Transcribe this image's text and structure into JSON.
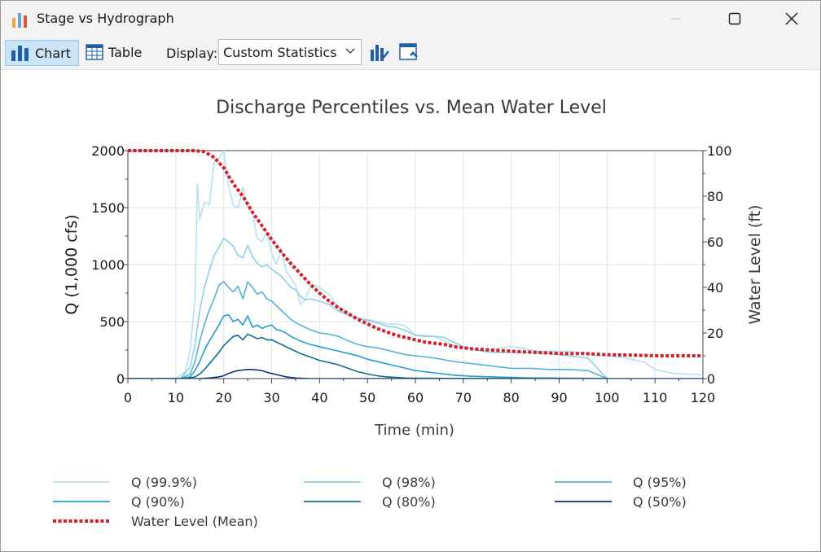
{
  "window": {
    "title": "Stage vs Hydrograph",
    "icon": "bar-chart-icon"
  },
  "toolbar": {
    "chart_label": "Chart",
    "table_label": "Table",
    "display_label": "Display:",
    "display_value": "Custom Statistics"
  },
  "chart_data": {
    "type": "line",
    "title": "Discharge Percentiles vs. Mean Water Level",
    "xlabel": "Time (min)",
    "ylabel": "Q (1,000 cfs)",
    "y2label": "Water Level (ft)",
    "xlim": [
      0,
      120
    ],
    "ylim": [
      0,
      2000
    ],
    "y2lim": [
      0,
      100
    ],
    "xticks": [
      "0",
      "10",
      "20",
      "30",
      "40",
      "50",
      "60",
      "70",
      "80",
      "90",
      "100",
      "110",
      "120"
    ],
    "yticks": [
      "0",
      "500",
      "1000",
      "1500",
      "2000"
    ],
    "y2ticks": [
      "0",
      "20",
      "40",
      "60",
      "80",
      "100"
    ],
    "grid": true,
    "legend_position": "bottom",
    "series": [
      {
        "name": "Q (99.9%)",
        "axis": "left",
        "color": "#b8e0ee",
        "style": "solid",
        "x": [
          0,
          10,
          12,
          13,
          14,
          14.5,
          15,
          16,
          17,
          18,
          19,
          20,
          21,
          22,
          23,
          24,
          25,
          26,
          27,
          28,
          29,
          30,
          31,
          32,
          33,
          34,
          35,
          36,
          37,
          38,
          39,
          40,
          42,
          44,
          46,
          48,
          50,
          52,
          54,
          56,
          58,
          60,
          62,
          64,
          66,
          68,
          70,
          72,
          74,
          76,
          78,
          80,
          82,
          84,
          86,
          88,
          90,
          92,
          94,
          96,
          98,
          100,
          102,
          104,
          106,
          108,
          110,
          112,
          114,
          116,
          118,
          120
        ],
        "y": [
          0,
          0,
          60,
          250,
          700,
          1710,
          1400,
          1550,
          1520,
          1900,
          1930,
          2000,
          1700,
          1520,
          1500,
          1680,
          1510,
          1450,
          1230,
          1200,
          1280,
          1100,
          1000,
          1140,
          950,
          880,
          820,
          650,
          690,
          800,
          820,
          800,
          740,
          620,
          560,
          520,
          520,
          500,
          480,
          480,
          460,
          380,
          380,
          370,
          330,
          290,
          270,
          260,
          250,
          250,
          270,
          280,
          270,
          250,
          240,
          240,
          240,
          240,
          230,
          220,
          200,
          200,
          190,
          180,
          160,
          140,
          80,
          60,
          45,
          40,
          38,
          30
        ]
      },
      {
        "name": "Q (98%)",
        "axis": "left",
        "color": "#8ecfe3",
        "style": "solid",
        "x": [
          0,
          11,
          13,
          14,
          15,
          16,
          17,
          18,
          19,
          20,
          21,
          22,
          23,
          24,
          25,
          26,
          27,
          28,
          29,
          30,
          31,
          32,
          33,
          34,
          35,
          36,
          37,
          38,
          39,
          40,
          42,
          44,
          46,
          48,
          50,
          52,
          54,
          56,
          58,
          60,
          62,
          64,
          66,
          68,
          70,
          72,
          74,
          76,
          78,
          80,
          84,
          88,
          92,
          96,
          100
        ],
        "y": [
          0,
          0,
          100,
          300,
          600,
          800,
          950,
          1080,
          1150,
          1230,
          1200,
          1160,
          1080,
          1060,
          1170,
          1070,
          1010,
          980,
          1000,
          960,
          930,
          900,
          850,
          800,
          780,
          720,
          690,
          700,
          690,
          680,
          650,
          590,
          560,
          530,
          510,
          490,
          460,
          450,
          420,
          380,
          370,
          370,
          360,
          320,
          280,
          260,
          240,
          230,
          230,
          230,
          230,
          220,
          200,
          180,
          0
        ]
      },
      {
        "name": "Q (95%)",
        "axis": "left",
        "color": "#52b3d4",
        "style": "solid",
        "x": [
          0,
          11,
          13,
          14,
          15,
          16,
          17,
          18,
          19,
          20,
          21,
          22,
          23,
          24,
          25,
          26,
          27,
          28,
          29,
          30,
          31,
          32,
          33,
          34,
          35,
          36,
          38,
          40,
          42,
          44,
          46,
          48,
          50,
          52,
          54,
          56,
          58,
          60,
          64,
          68,
          72,
          76,
          80,
          84,
          88,
          92,
          96,
          100
        ],
        "y": [
          0,
          0,
          40,
          150,
          330,
          480,
          600,
          700,
          820,
          850,
          800,
          760,
          810,
          700,
          850,
          800,
          740,
          760,
          700,
          680,
          640,
          600,
          560,
          520,
          490,
          470,
          430,
          400,
          390,
          370,
          330,
          300,
          280,
          270,
          250,
          230,
          210,
          200,
          180,
          150,
          130,
          110,
          90,
          90,
          80,
          80,
          70,
          0
        ]
      },
      {
        "name": "Q (90%)",
        "axis": "left",
        "color": "#1f9fc9",
        "style": "solid",
        "x": [
          0,
          11,
          13,
          14,
          15,
          16,
          17,
          18,
          19,
          20,
          21,
          22,
          23,
          24,
          25,
          26,
          27,
          28,
          29,
          30,
          31,
          32,
          33,
          34,
          35,
          36,
          38,
          40,
          42,
          44,
          46,
          48,
          50,
          52,
          54,
          56,
          58,
          60,
          64,
          68,
          72,
          76,
          80,
          84,
          88,
          92,
          96,
          100
        ],
        "y": [
          0,
          0,
          15,
          70,
          150,
          250,
          330,
          400,
          470,
          550,
          560,
          500,
          520,
          470,
          550,
          450,
          470,
          440,
          460,
          470,
          430,
          420,
          400,
          370,
          350,
          330,
          300,
          280,
          260,
          240,
          220,
          200,
          170,
          150,
          130,
          110,
          90,
          70,
          50,
          30,
          20,
          15,
          10,
          5,
          5,
          3,
          2,
          0
        ]
      },
      {
        "name": "Q (80%)",
        "axis": "left",
        "color": "#0f6d8e",
        "style": "solid",
        "x": [
          0,
          12,
          14,
          15,
          16,
          17,
          18,
          19,
          20,
          21,
          22,
          23,
          24,
          25,
          26,
          27,
          28,
          29,
          30,
          31,
          32,
          33,
          34,
          35,
          36,
          38,
          40,
          42,
          44,
          46,
          48,
          50,
          52,
          54,
          56,
          58,
          60,
          64,
          68,
          72,
          76,
          80
        ],
        "y": [
          0,
          0,
          15,
          40,
          80,
          130,
          180,
          230,
          290,
          330,
          370,
          380,
          340,
          390,
          370,
          350,
          360,
          340,
          340,
          320,
          300,
          280,
          260,
          240,
          220,
          190,
          160,
          140,
          120,
          90,
          60,
          40,
          25,
          15,
          10,
          5,
          3,
          2,
          1,
          0,
          0,
          0
        ]
      },
      {
        "name": "Q (80%)",
        "axis": "left",
        "color": "#0f6d8e",
        "style": "hidden",
        "x": [],
        "y": []
      },
      {
        "name": "Q (50%)",
        "axis": "left",
        "color": "#10327a",
        "style": "solid",
        "x": [
          0,
          15,
          17,
          19,
          20,
          21,
          22,
          23,
          24,
          25,
          26,
          27,
          28,
          29,
          30,
          31,
          32,
          33,
          34,
          35,
          36,
          38,
          120
        ],
        "y": [
          0,
          0,
          5,
          15,
          25,
          45,
          60,
          70,
          75,
          80,
          80,
          75,
          70,
          55,
          45,
          35,
          25,
          15,
          10,
          5,
          3,
          0,
          0
        ]
      },
      {
        "name": "Water Level (Mean)",
        "axis": "right",
        "color": "#d0222a",
        "style": "dotted",
        "x": [
          0,
          14,
          16,
          18,
          20,
          22,
          24,
          26,
          28,
          30,
          32,
          34,
          36,
          38,
          40,
          42,
          44,
          46,
          48,
          50,
          52,
          54,
          56,
          58,
          60,
          62,
          64,
          66,
          68,
          70,
          72,
          74,
          76,
          78,
          80,
          85,
          90,
          95,
          100,
          105,
          110,
          115,
          120
        ],
        "y": [
          100,
          100,
          99.5,
          97,
          92.5,
          85.5,
          80,
          73,
          67,
          61,
          55.5,
          50.5,
          46,
          41.5,
          37.5,
          34,
          31,
          28.5,
          26,
          24,
          22,
          20.5,
          19,
          18,
          17,
          16,
          15.5,
          15,
          14,
          13.5,
          13,
          12.8,
          12.5,
          12.3,
          12,
          11.5,
          11,
          11,
          10.5,
          10.3,
          10,
          10,
          10
        ]
      }
    ]
  },
  "legend": {
    "items": [
      {
        "label": "Q (99.9%)",
        "color": "#b8e0ee",
        "style": "solid"
      },
      {
        "label": "Q (98%)",
        "color": "#8ecfe3",
        "style": "solid"
      },
      {
        "label": "Q (95%)",
        "color": "#52b3d4",
        "style": "solid"
      },
      {
        "label": "Q (90%)",
        "color": "#1f9fc9",
        "style": "solid"
      },
      {
        "label": "Q (80%)",
        "color": "#0f6d8e",
        "style": "solid"
      },
      {
        "label": "Q (50%)",
        "color": "#10327a",
        "style": "solid"
      },
      {
        "label": "Water Level (Mean)",
        "color": "#d0222a",
        "style": "dotted"
      }
    ]
  }
}
